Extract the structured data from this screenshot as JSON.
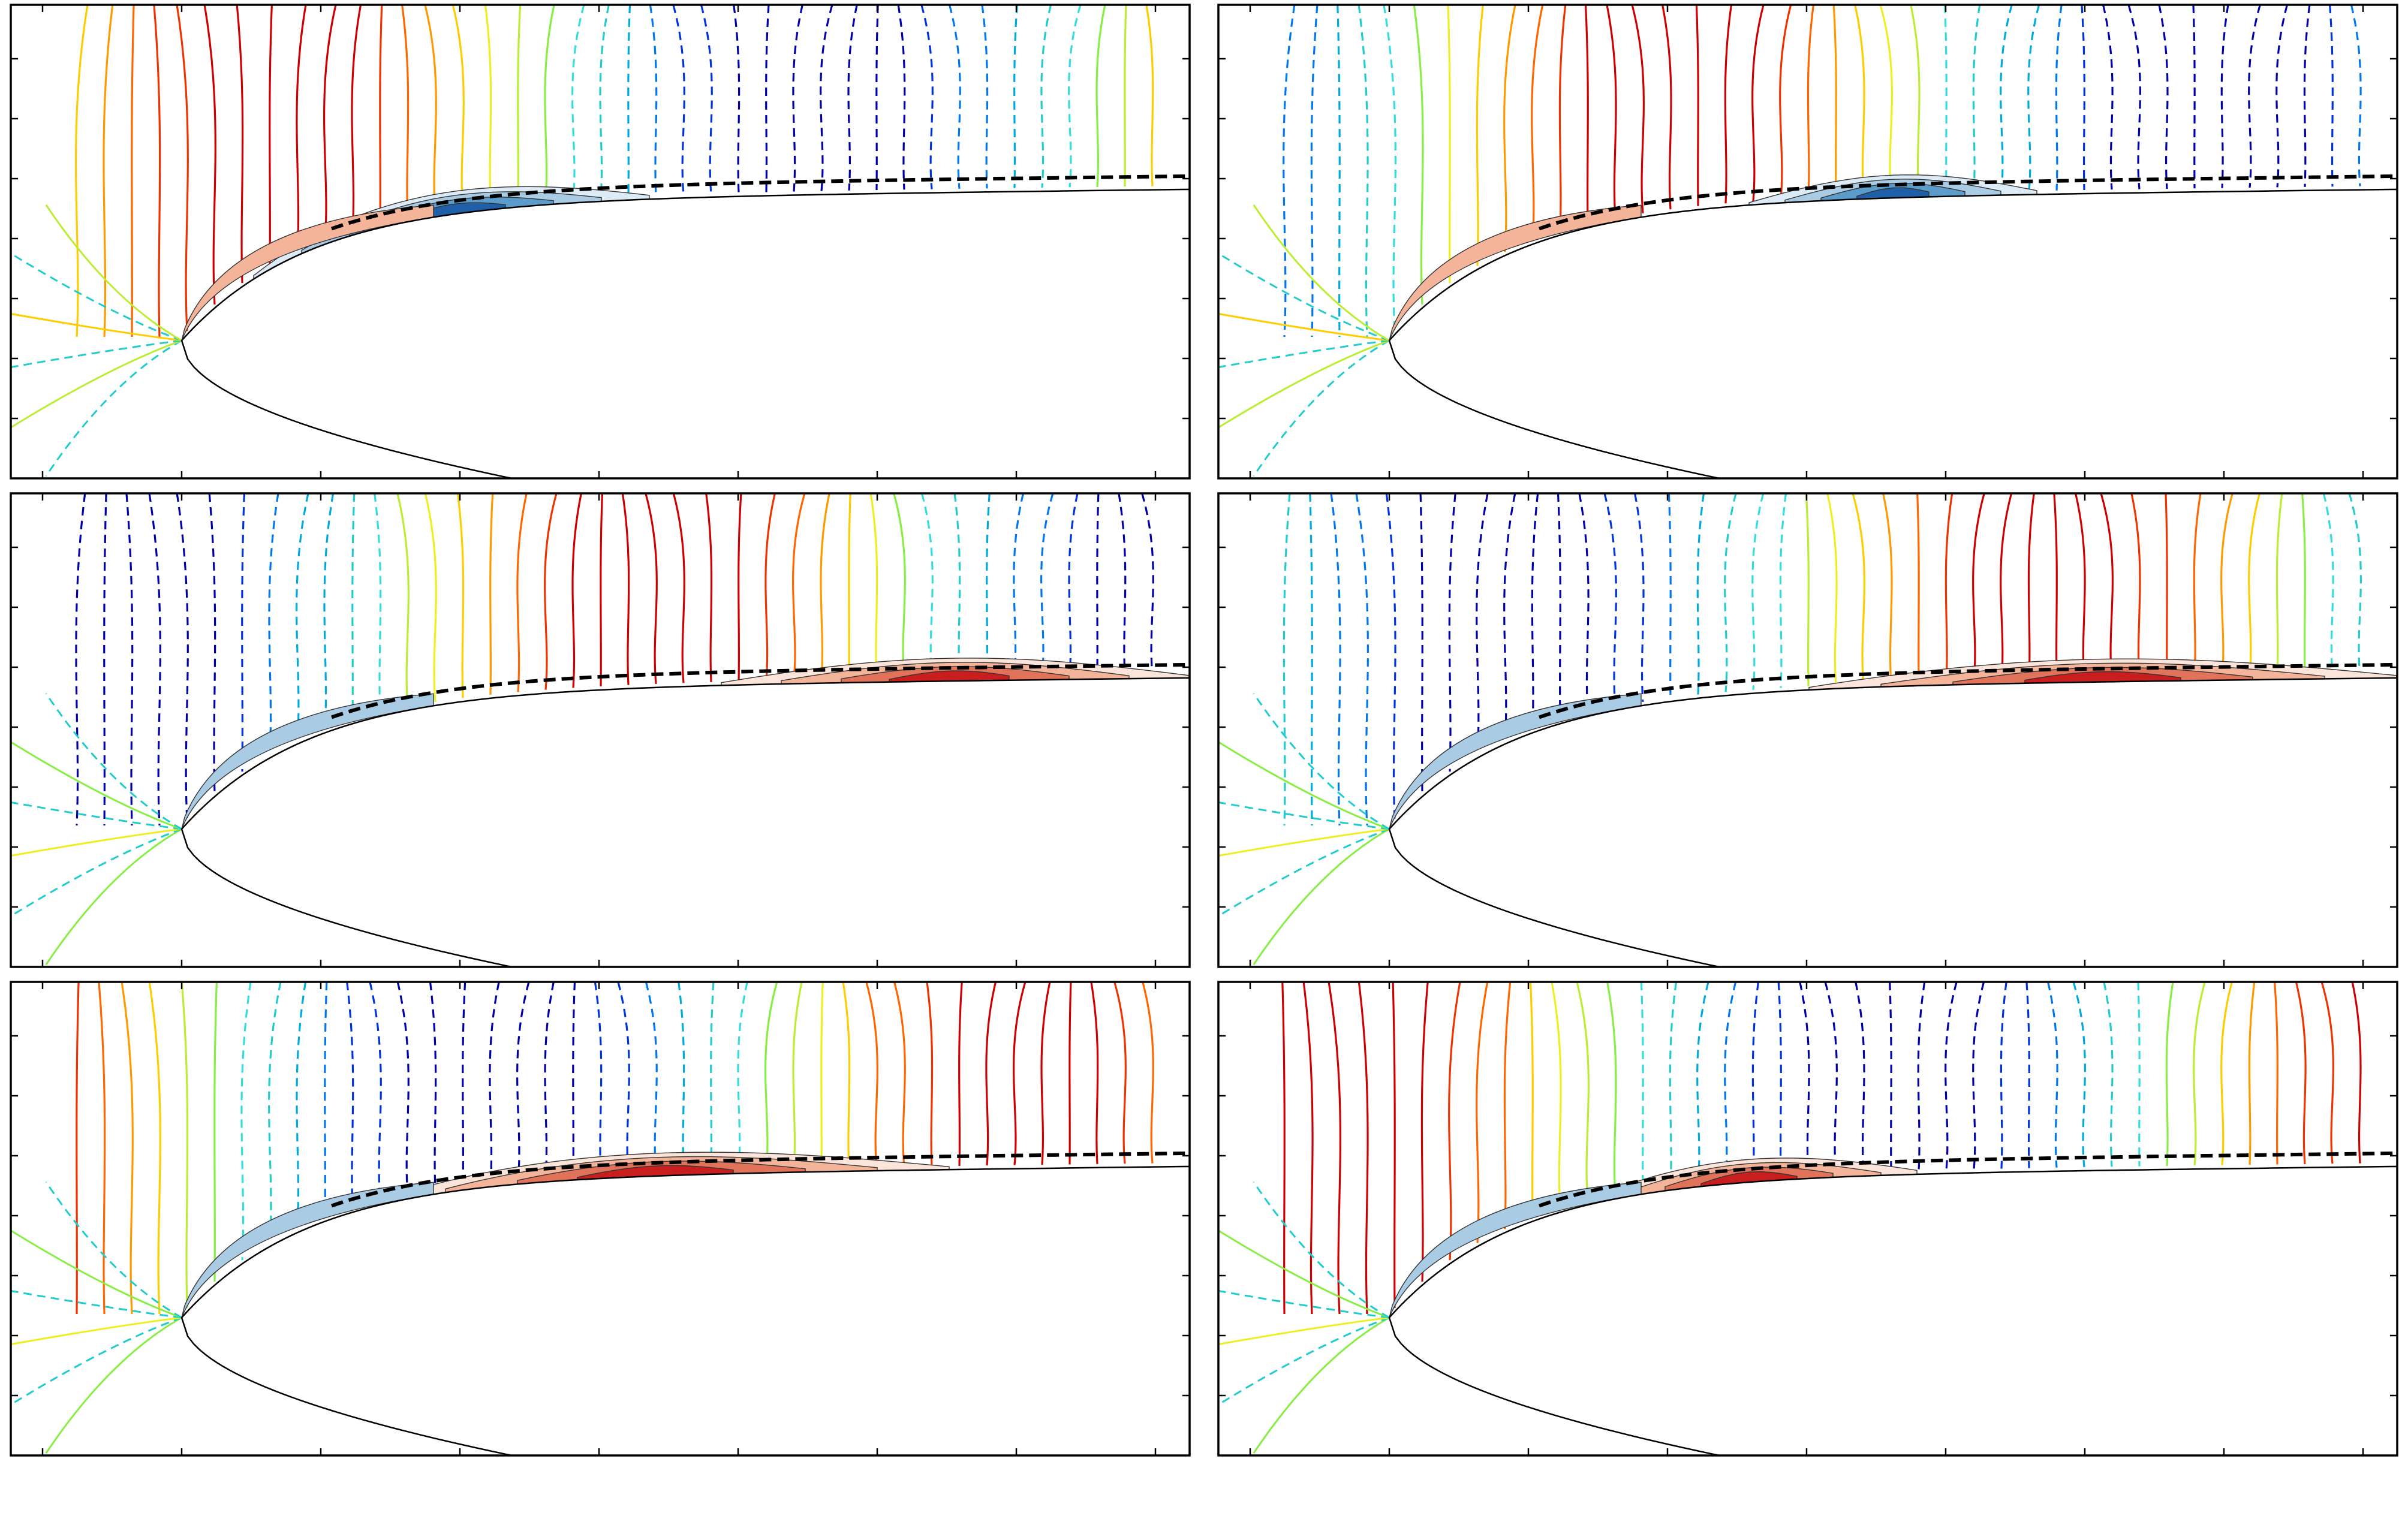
{
  "figure": {
    "description_labels": [],
    "colors": {
      "negative_lines": [
        "#0000aa",
        "#0033dd",
        "#0077ee",
        "#00aadd",
        "#22cccc",
        "#33dddd"
      ],
      "positive_lines": [
        "#88ee44",
        "#bbee33",
        "#eeee22",
        "#ffcc00",
        "#ff9900",
        "#ff6600",
        "#ee3300",
        "#cc0000"
      ],
      "fill_positive": [
        "#fbe4da",
        "#f3b49a",
        "#e0735a",
        "#c81e1e"
      ],
      "fill_negative": [
        "#dcebf5",
        "#a9cbe4",
        "#5b9ccb",
        "#1f5fa8"
      ],
      "airfoil": "#000000",
      "dividing_line": "#000000"
    }
  },
  "chart_data": [
    {
      "type": "contour",
      "panel": "top-left",
      "title": "",
      "xlabel": "",
      "ylabel": "",
      "grid": false,
      "wave_phase": 0.0,
      "fill_band": [
        0.2,
        0.55
      ],
      "fill_sign": -1,
      "nose_fill_sign": 1
    },
    {
      "type": "contour",
      "panel": "top-right",
      "title": "",
      "xlabel": "",
      "ylabel": "",
      "grid": false,
      "wave_phase": 0.35,
      "fill_band": [
        0.45,
        0.7
      ],
      "fill_sign": -1,
      "nose_fill_sign": 1
    },
    {
      "type": "contour",
      "panel": "middle-left",
      "title": "",
      "xlabel": "",
      "ylabel": "",
      "grid": false,
      "wave_phase": 0.7,
      "fill_band": [
        0.6,
        1.0
      ],
      "fill_sign": 1,
      "nose_fill_sign": -1
    },
    {
      "type": "contour",
      "panel": "middle-right",
      "title": "",
      "xlabel": "",
      "ylabel": "",
      "grid": false,
      "wave_phase": 1.05,
      "fill_band": [
        0.5,
        1.0
      ],
      "fill_sign": 1,
      "nose_fill_sign": -1
    },
    {
      "type": "contour",
      "panel": "bottom-left",
      "title": "",
      "xlabel": "",
      "ylabel": "",
      "grid": false,
      "wave_phase": 1.4,
      "fill_band": [
        0.3,
        0.8
      ],
      "fill_sign": 1,
      "nose_fill_sign": -1
    },
    {
      "type": "contour",
      "panel": "bottom-right",
      "title": "",
      "xlabel": "",
      "ylabel": "",
      "grid": false,
      "wave_phase": 1.75,
      "fill_band": [
        0.3,
        0.6
      ],
      "fill_sign": 1,
      "nose_fill_sign": -1
    }
  ]
}
